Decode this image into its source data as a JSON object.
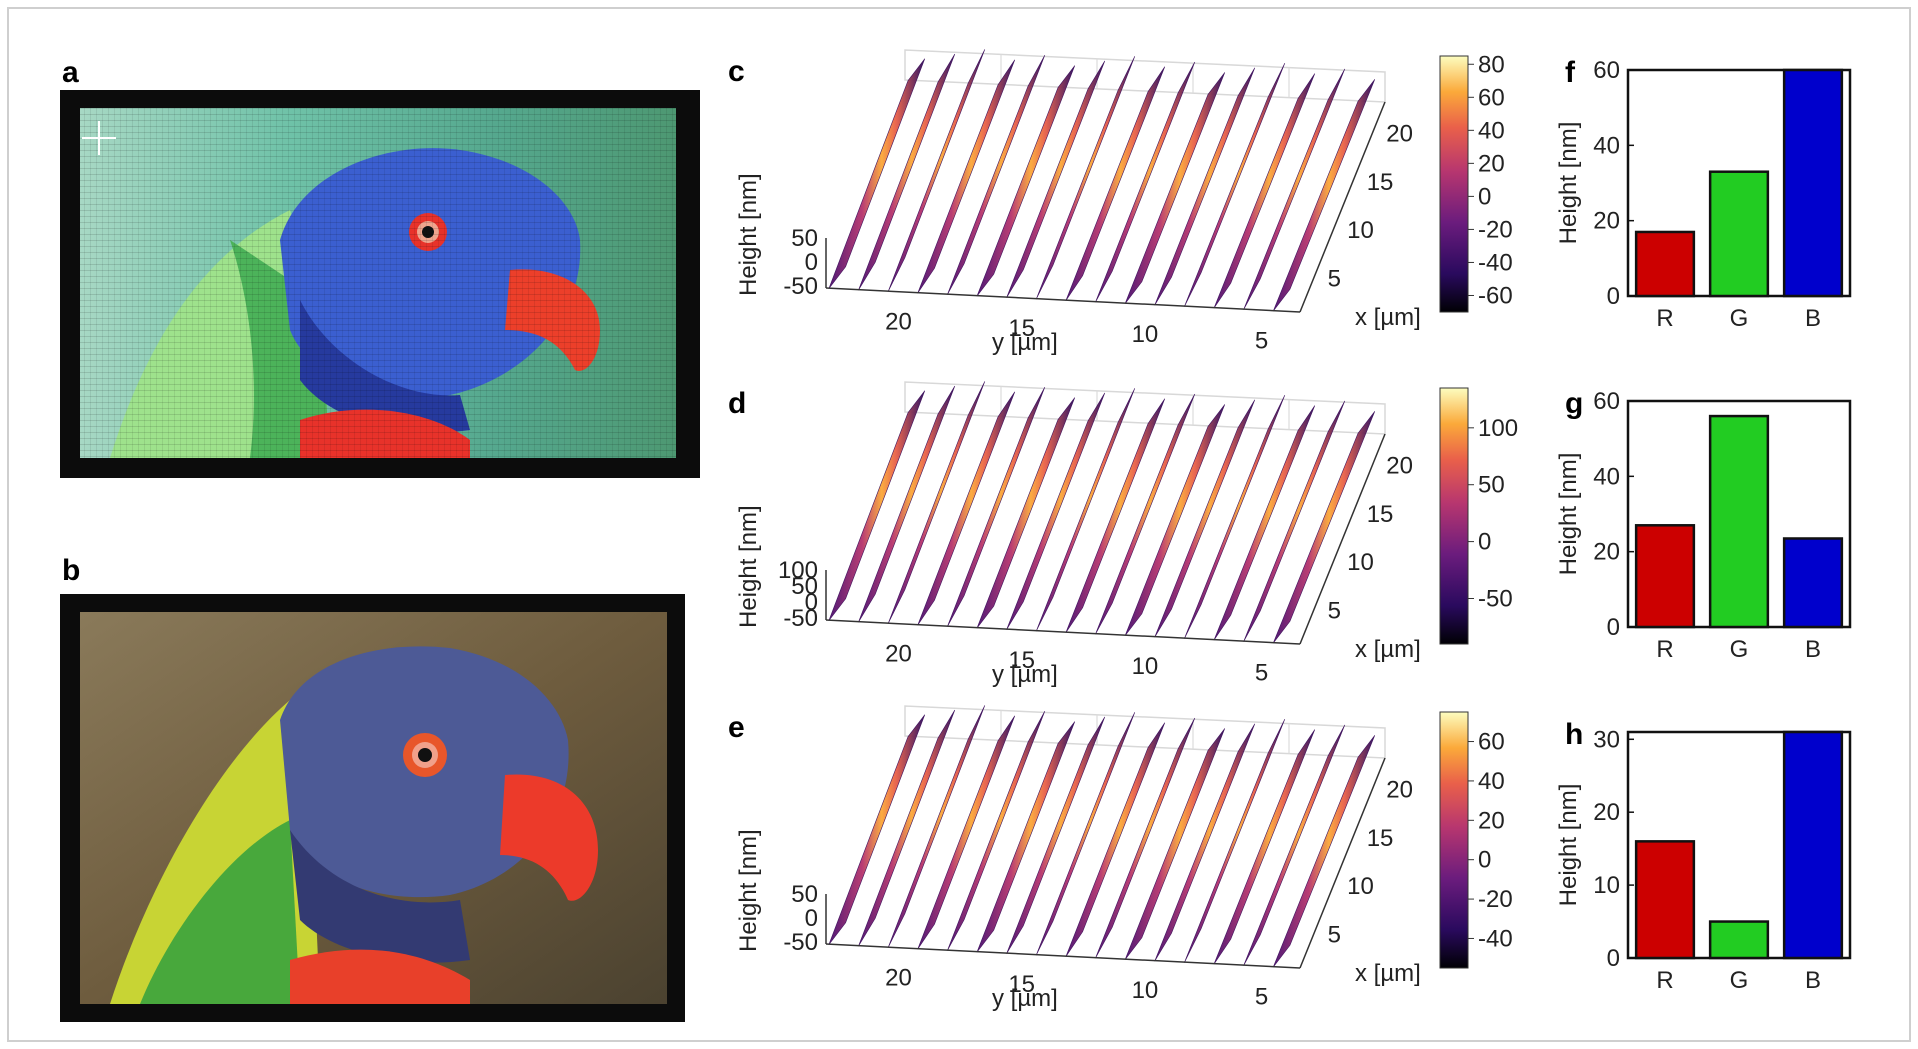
{
  "panels": {
    "a": {
      "letter": "a"
    },
    "b": {
      "letter": "b"
    },
    "c": {
      "letter": "c"
    },
    "d": {
      "letter": "d"
    },
    "e": {
      "letter": "e"
    },
    "f": {
      "letter": "f"
    },
    "g": {
      "letter": "g"
    },
    "h": {
      "letter": "h"
    }
  },
  "surface_labels": {
    "zlabel": "Height [nm]",
    "xlabel": "x [µm]",
    "ylabel": "y [µm]",
    "y_ticks": [
      "20",
      "15",
      "10",
      "5"
    ],
    "x_ticks": [
      "20",
      "15",
      "10",
      "5"
    ]
  },
  "surfaces": [
    {
      "id": "c",
      "z_ticks": [
        "50",
        "0",
        "-50"
      ],
      "colorbar_ticks": [
        "80",
        "60",
        "40",
        "20",
        "0",
        "-20",
        "-40",
        "-60"
      ],
      "colorbar_range": [
        -70,
        85
      ]
    },
    {
      "id": "d",
      "z_ticks": [
        "100",
        "50",
        "0",
        "-50"
      ],
      "colorbar_ticks": [
        "100",
        "50",
        "0",
        "-50"
      ],
      "colorbar_range": [
        -90,
        135
      ]
    },
    {
      "id": "e",
      "z_ticks": [
        "50",
        "0",
        "-50"
      ],
      "colorbar_ticks": [
        "60",
        "40",
        "20",
        "0",
        "-20",
        "-40"
      ],
      "colorbar_range": [
        -55,
        75
      ]
    }
  ],
  "chart_data": [
    {
      "id": "f",
      "type": "bar",
      "categories": [
        "R",
        "G",
        "B"
      ],
      "values": [
        17,
        33,
        60
      ],
      "ylabel": "Height [nm]",
      "ylim": [
        0,
        60
      ],
      "yticks": [
        0,
        20,
        40,
        60
      ],
      "colors": [
        "#cc0000",
        "#22cc22",
        "#0000cc"
      ]
    },
    {
      "id": "g",
      "type": "bar",
      "categories": [
        "R",
        "G",
        "B"
      ],
      "values": [
        27,
        56,
        23.5
      ],
      "ylabel": "Height [nm]",
      "ylim": [
        0,
        60
      ],
      "yticks": [
        0,
        20,
        40,
        60
      ],
      "colors": [
        "#cc0000",
        "#22cc22",
        "#0000cc"
      ]
    },
    {
      "id": "h",
      "type": "bar",
      "categories": [
        "R",
        "G",
        "B"
      ],
      "values": [
        16,
        5,
        31
      ],
      "ylabel": "Height [nm]",
      "ylim": [
        0,
        31
      ],
      "yticks": [
        0,
        10,
        20,
        30
      ],
      "colors": [
        "#cc0000",
        "#22cc22",
        "#0000cc"
      ]
    }
  ],
  "colors": {
    "bar_R": "#cc0000",
    "bar_G": "#22cc22",
    "bar_B": "#0000cc"
  }
}
